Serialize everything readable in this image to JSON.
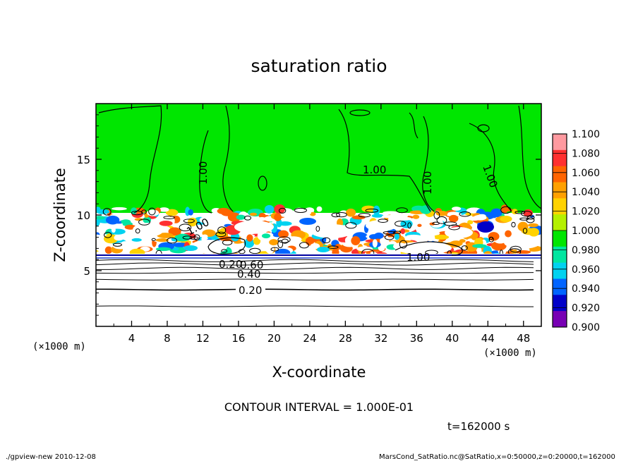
{
  "chart_data": {
    "type": "heatmap",
    "title": "saturation ratio",
    "xlabel": "X-coordinate",
    "ylabel": "Z-coordinate",
    "x_unit": "(×1000 m)",
    "y_unit": "(×1000 m)",
    "xlim": [
      0,
      50
    ],
    "ylim": [
      0,
      20
    ],
    "x_ticks": [
      4,
      8,
      12,
      16,
      20,
      24,
      28,
      32,
      36,
      40,
      44,
      48
    ],
    "y_ticks": [
      5,
      10,
      15
    ],
    "colorbar": {
      "levels": [
        "1.100",
        "1.080",
        "1.060",
        "1.040",
        "1.020",
        "1.000",
        "0.980",
        "0.960",
        "0.940",
        "0.920",
        "0.900"
      ],
      "colors": [
        "#ff9aa0",
        "#ff3030",
        "#ff6400",
        "#ffa000",
        "#ffd200",
        "#b4f000",
        "#00e600",
        "#00e6a0",
        "#00d2f0",
        "#0064ff",
        "#0000c8",
        "#7800b4"
      ]
    },
    "contour_labels": [
      "1.00",
      "1.00",
      "1.00",
      "1.00",
      "1.00",
      "1.00",
      "0.60",
      "0.40",
      "0.20",
      "0.20"
    ],
    "contour_interval": "CONTOUR INTERVAL = 1.000E-01",
    "time_label": "t=162000 s"
  },
  "footer": {
    "left": "./gpview-new  2010-12-08",
    "right": "MarsCond_SatRatio.nc@SatRatio,x=0:50000,z=0:20000,t=162000"
  },
  "colors": {
    "field_green": "#00e600",
    "background": "#ffffff",
    "contour": "#000000"
  }
}
